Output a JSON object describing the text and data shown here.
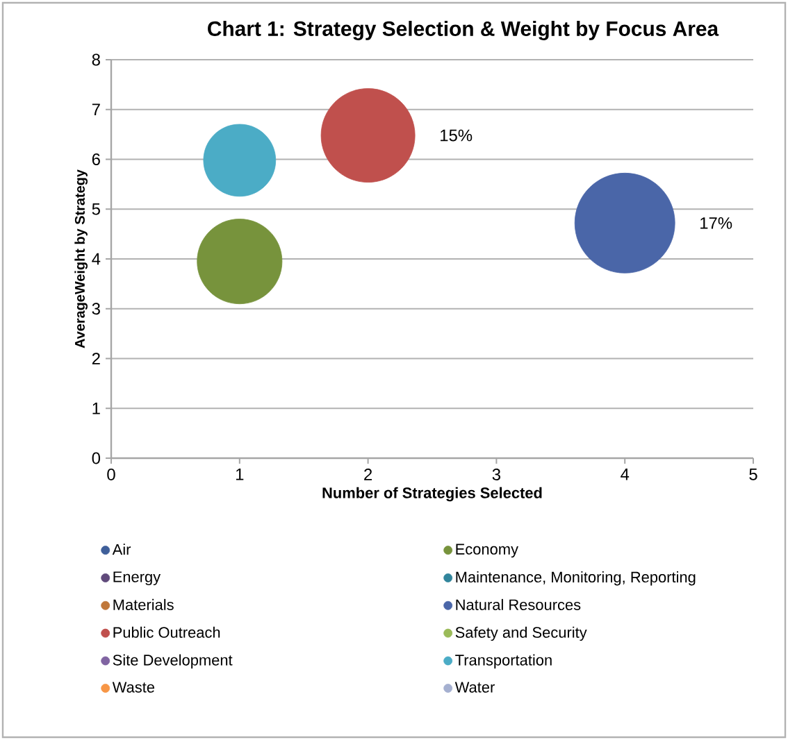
{
  "chart_data": {
    "type": "bubble",
    "title": "Chart 1: Strategy Selection & Weight by Focus Area",
    "xlabel": "Number of Strategies Selected",
    "ylabel": "AverageWeight by Strategy",
    "xlim": [
      0,
      5
    ],
    "xticks": [
      0,
      1,
      2,
      3,
      4,
      5
    ],
    "ylim": [
      0,
      8
    ],
    "yticks": [
      0,
      1,
      2,
      3,
      4,
      5,
      6,
      7,
      8
    ],
    "grid": "y",
    "legend": "bottom",
    "annotations": [
      "15%",
      "17%"
    ],
    "series": [
      {
        "name": "Air",
        "color": "#3f5f9a"
      },
      {
        "name": "Economy",
        "color": "#77933c",
        "x": [
          1
        ],
        "values": [
          3.95
        ],
        "sizes": [
          0.72
        ]
      },
      {
        "name": "Energy",
        "color": "#604a7b"
      },
      {
        "name": "Maintenance, Monitoring, Reporting",
        "color": "#31859c"
      },
      {
        "name": "Materials",
        "color": "#c0773a"
      },
      {
        "name": "Natural Resources",
        "color": "#4a66a8",
        "x": [
          4
        ],
        "values": [
          4.72
        ],
        "sizes": [
          1
        ]
      },
      {
        "name": "Public Outreach",
        "color": "#c0504d",
        "x": [
          2
        ],
        "values": [
          6.48
        ],
        "sizes": [
          0.88
        ]
      },
      {
        "name": "Safety and Security",
        "color": "#9bbb59"
      },
      {
        "name": "Site Development",
        "color": "#8064a2"
      },
      {
        "name": "Transportation",
        "color": "#4bacc6",
        "x": [
          1
        ],
        "values": [
          5.98
        ],
        "sizes": [
          0.52
        ]
      },
      {
        "name": "Waste",
        "color": "#f79646"
      },
      {
        "name": "Water",
        "color": "#a5b0d0"
      }
    ]
  }
}
